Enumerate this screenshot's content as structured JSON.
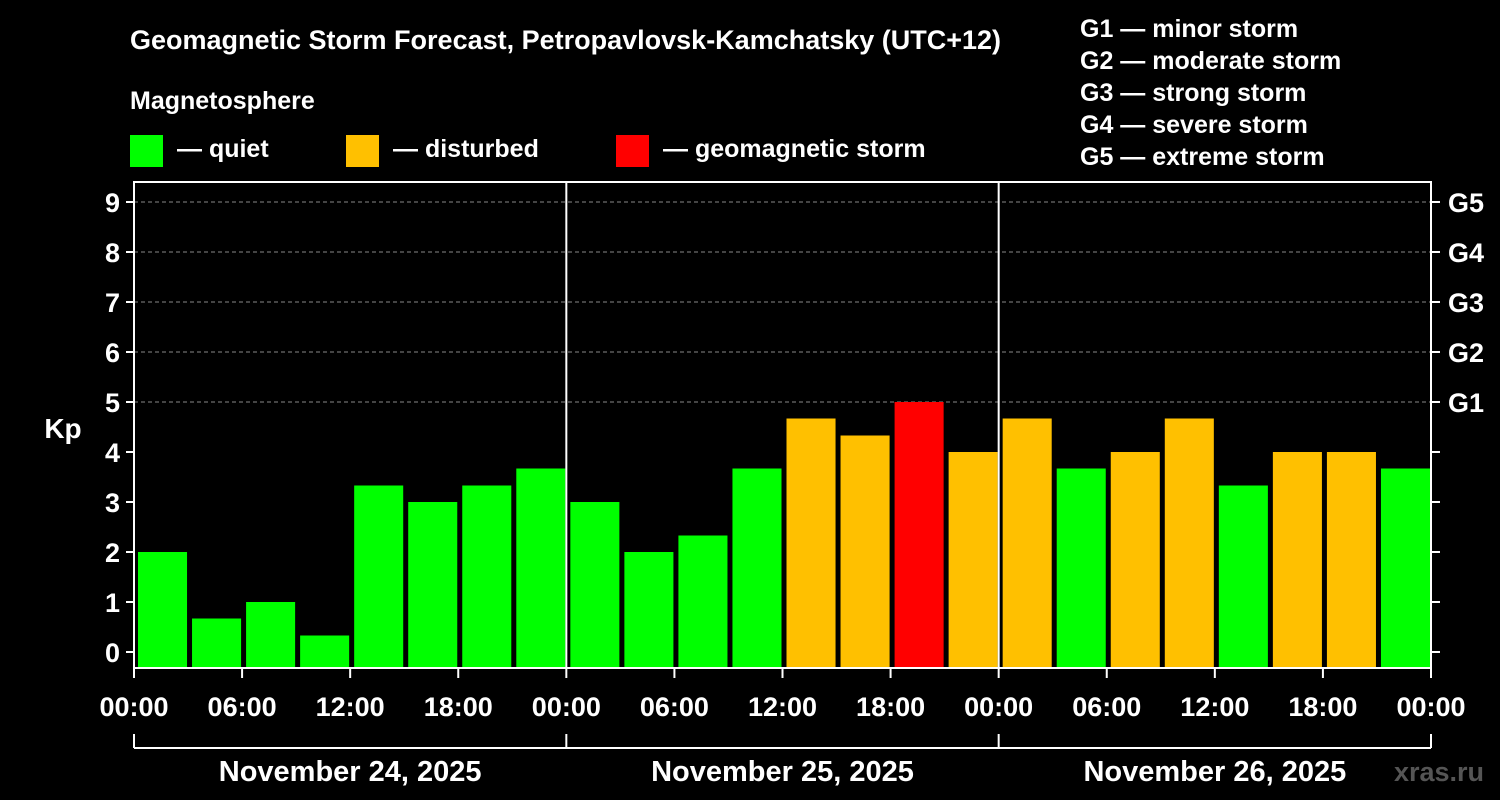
{
  "title": "Geomagnetic Storm Forecast, Petropavlovsk-Kamchatsky (UTC+12)",
  "legend_heading": "Magnetosphere",
  "legend": [
    {
      "label": "— quiet",
      "color": "#00ff00"
    },
    {
      "label": "— disturbed",
      "color": "#ffc000"
    },
    {
      "label": "— geomagnetic storm",
      "color": "#ff0000"
    }
  ],
  "storm_scale": [
    "G1 — minor storm",
    "G2 — moderate storm",
    "G3 — strong storm",
    "G4 — severe storm",
    "G5 — extreme storm"
  ],
  "watermark": "xras.ru",
  "chart_data": {
    "type": "bar",
    "ylabel": "Kp",
    "xlabel": "",
    "ylim": [
      0,
      9
    ],
    "y_ticks": [
      "0",
      "1",
      "2",
      "3",
      "4",
      "5",
      "6",
      "7",
      "8",
      "9"
    ],
    "right_ticks": [
      {
        "value": 5,
        "label": "G1"
      },
      {
        "value": 6,
        "label": "G2"
      },
      {
        "value": 7,
        "label": "G3"
      },
      {
        "value": 8,
        "label": "G4"
      },
      {
        "value": 9,
        "label": "G5"
      }
    ],
    "grid": "dashed horizontal at integer Kp 5-9",
    "x_tick_labels": [
      "00:00",
      "06:00",
      "12:00",
      "18:00",
      "00:00",
      "06:00",
      "12:00",
      "18:00",
      "00:00",
      "06:00",
      "12:00",
      "18:00",
      "00:00"
    ],
    "days": [
      "November 24, 2025",
      "November 25, 2025",
      "November 26, 2025"
    ],
    "values": [
      2.0,
      0.67,
      1.0,
      0.33,
      3.33,
      3.0,
      3.33,
      3.67,
      3.0,
      2.0,
      2.33,
      3.67,
      4.67,
      4.33,
      5.0,
      4.0,
      4.67,
      3.67,
      4.0,
      4.67,
      3.33,
      4.0,
      4.0,
      3.67
    ],
    "levels": [
      "quiet",
      "quiet",
      "quiet",
      "quiet",
      "quiet",
      "quiet",
      "quiet",
      "quiet",
      "quiet",
      "quiet",
      "quiet",
      "quiet",
      "disturbed",
      "disturbed",
      "storm",
      "disturbed",
      "disturbed",
      "quiet",
      "disturbed",
      "disturbed",
      "quiet",
      "disturbed",
      "disturbed",
      "quiet"
    ],
    "level_colors": {
      "quiet": "#00ff00",
      "disturbed": "#ffc000",
      "storm": "#ff0000"
    }
  }
}
